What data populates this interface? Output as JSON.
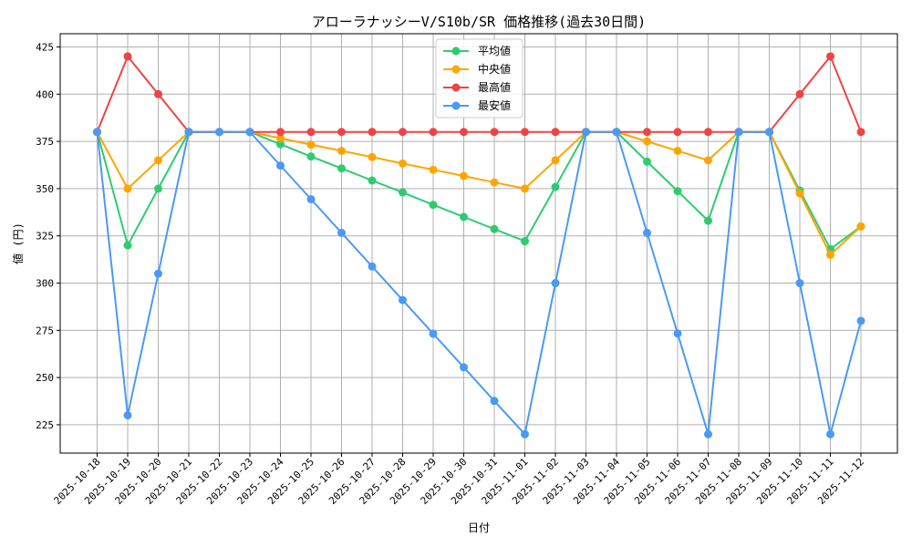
{
  "chart_data": {
    "type": "line",
    "title": "アローラナッシーV/S10b/SR 価格推移(過去30日間)",
    "xlabel": "日付",
    "ylabel": "値 (円)",
    "categories": [
      "2025-10-18",
      "2025-10-19",
      "2025-10-20",
      "2025-10-21",
      "2025-10-22",
      "2025-10-23",
      "2025-10-24",
      "2025-10-25",
      "2025-10-26",
      "2025-10-27",
      "2025-10-28",
      "2025-10-29",
      "2025-10-30",
      "2025-10-31",
      "2025-11-01",
      "2025-11-02",
      "2025-11-03",
      "2025-11-04",
      "2025-11-05",
      "2025-11-06",
      "2025-11-07",
      "2025-11-08",
      "2025-11-09",
      "2025-11-10",
      "2025-11-11",
      "2025-11-12"
    ],
    "yticks": [
      225,
      250,
      275,
      300,
      325,
      350,
      375,
      400,
      425
    ],
    "ylim": [
      210,
      432
    ],
    "grid": true,
    "legend_position": "top-center",
    "series": [
      {
        "name": "平均値",
        "color": "#2ecc71",
        "values": [
          380,
          320,
          350,
          380,
          380,
          380,
          373.5,
          367,
          360.7,
          354.3,
          348,
          341.4,
          335,
          328.6,
          322.2,
          350.9,
          380,
          380,
          364.3,
          348.7,
          333,
          380,
          380,
          349,
          318,
          330
        ]
      },
      {
        "name": "中央値",
        "color": "#ffa500",
        "values": [
          380,
          350,
          365,
          380,
          380,
          380,
          376.7,
          373.3,
          370,
          366.7,
          363.3,
          360,
          356.7,
          353.3,
          350,
          365,
          380,
          380,
          375,
          370,
          365,
          380,
          380,
          347.5,
          315,
          330
        ]
      },
      {
        "name": "最高値",
        "color": "#ef4444",
        "values": [
          380,
          420,
          400,
          380,
          380,
          380,
          380,
          380,
          380,
          380,
          380,
          380,
          380,
          380,
          380,
          380,
          380,
          380,
          380,
          380,
          380,
          380,
          380,
          400,
          420,
          380
        ]
      },
      {
        "name": "最安値",
        "color": "#4a9af5",
        "values": [
          380,
          230,
          305,
          380,
          380,
          380,
          362.2,
          344.4,
          326.6,
          308.8,
          291,
          273.2,
          255.4,
          237.6,
          220,
          300,
          380,
          380,
          326.6,
          273.3,
          220,
          380,
          380,
          300,
          220,
          280
        ]
      }
    ]
  }
}
